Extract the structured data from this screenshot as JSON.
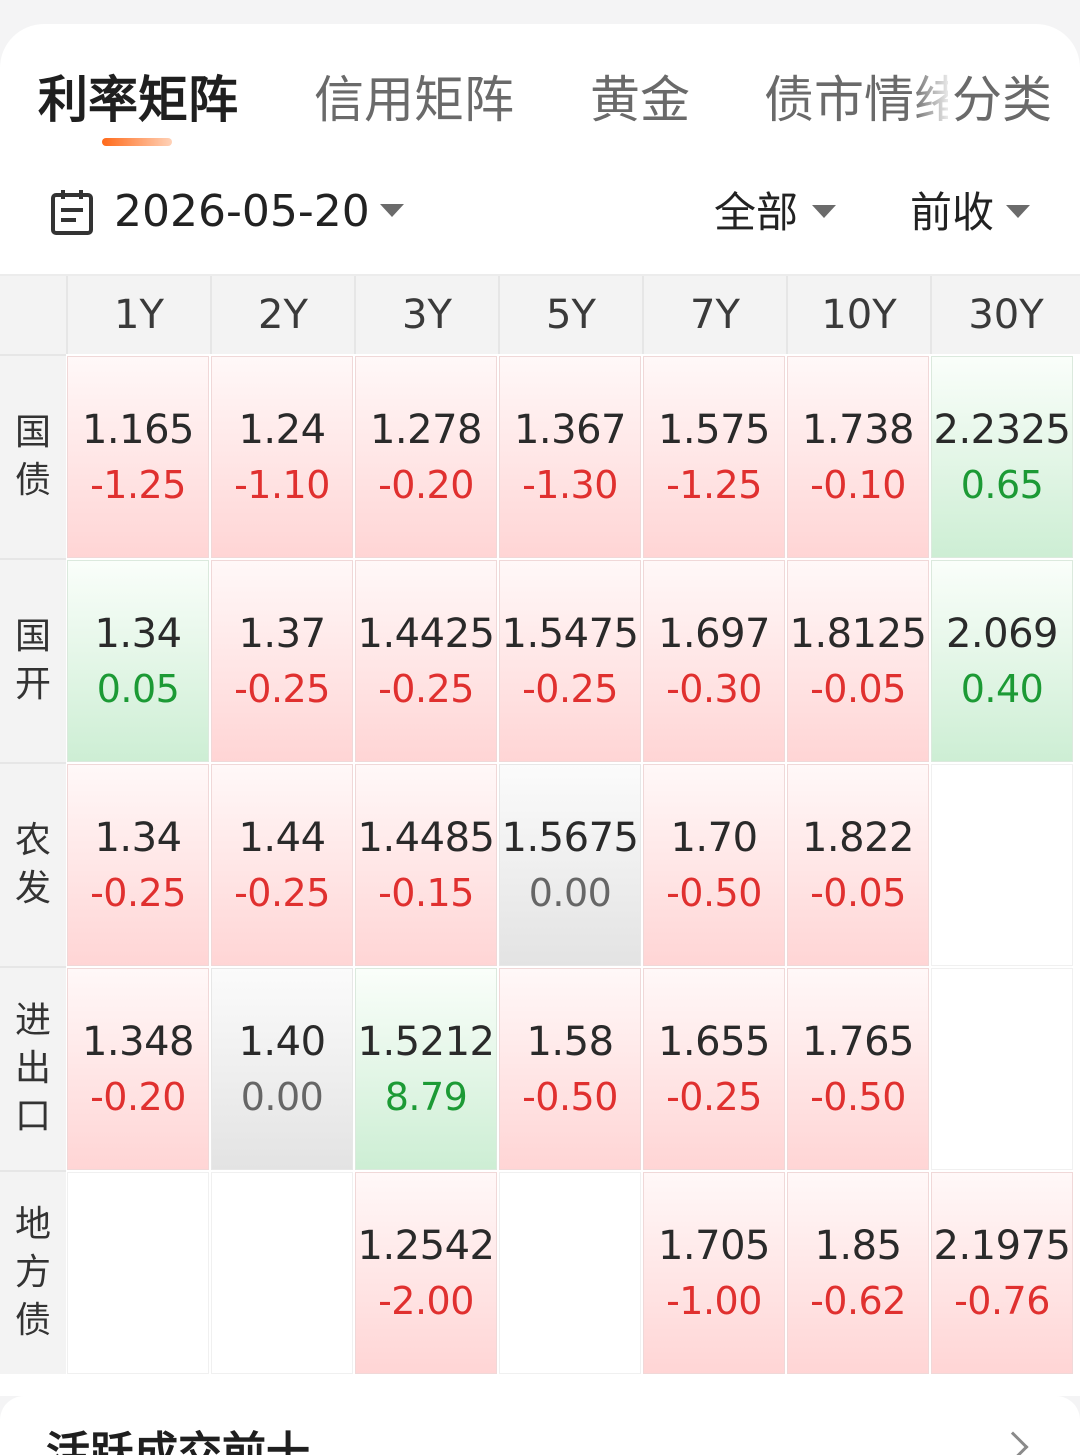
{
  "tabs": [
    {
      "label": "利率矩阵"
    },
    {
      "label": "信用矩阵"
    },
    {
      "label": "黄金"
    },
    {
      "label": "债市情绪"
    },
    {
      "label": "分类"
    }
  ],
  "filters": {
    "date": "2026-05-20",
    "scope": "全部",
    "compare": "前收"
  },
  "matrix": {
    "columns": [
      "1Y",
      "2Y",
      "3Y",
      "5Y",
      "7Y",
      "10Y",
      "30Y"
    ],
    "rows": [
      {
        "label": "国债",
        "cells": [
          {
            "y": "1.165",
            "c": "-1.25",
            "t": "down"
          },
          {
            "y": "1.24",
            "c": "-1.10",
            "t": "down"
          },
          {
            "y": "1.278",
            "c": "-0.20",
            "t": "down"
          },
          {
            "y": "1.367",
            "c": "-1.30",
            "t": "down"
          },
          {
            "y": "1.575",
            "c": "-1.25",
            "t": "down"
          },
          {
            "y": "1.738",
            "c": "-0.10",
            "t": "down"
          },
          {
            "y": "2.2325",
            "c": "0.65",
            "t": "up"
          }
        ]
      },
      {
        "label": "国开",
        "cells": [
          {
            "y": "1.34",
            "c": "0.05",
            "t": "up"
          },
          {
            "y": "1.37",
            "c": "-0.25",
            "t": "down"
          },
          {
            "y": "1.4425",
            "c": "-0.25",
            "t": "down"
          },
          {
            "y": "1.5475",
            "c": "-0.25",
            "t": "down"
          },
          {
            "y": "1.697",
            "c": "-0.30",
            "t": "down"
          },
          {
            "y": "1.8125",
            "c": "-0.05",
            "t": "down"
          },
          {
            "y": "2.069",
            "c": "0.40",
            "t": "up"
          }
        ]
      },
      {
        "label": "农发",
        "cells": [
          {
            "y": "1.34",
            "c": "-0.25",
            "t": "down"
          },
          {
            "y": "1.44",
            "c": "-0.25",
            "t": "down"
          },
          {
            "y": "1.4485",
            "c": "-0.15",
            "t": "down"
          },
          {
            "y": "1.5675",
            "c": "0.00",
            "t": "flat"
          },
          {
            "y": "1.70",
            "c": "-0.50",
            "t": "down"
          },
          {
            "y": "1.822",
            "c": "-0.05",
            "t": "down"
          },
          null
        ]
      },
      {
        "label": "进出口",
        "cells": [
          {
            "y": "1.348",
            "c": "-0.20",
            "t": "down"
          },
          {
            "y": "1.40",
            "c": "0.00",
            "t": "flat"
          },
          {
            "y": "1.5212",
            "c": "8.79",
            "t": "up"
          },
          {
            "y": "1.58",
            "c": "-0.50",
            "t": "down"
          },
          {
            "y": "1.655",
            "c": "-0.25",
            "t": "down"
          },
          {
            "y": "1.765",
            "c": "-0.50",
            "t": "down"
          },
          null
        ]
      },
      {
        "label": "地方债",
        "cells": [
          null,
          null,
          {
            "y": "1.2542",
            "c": "-2.00",
            "t": "down"
          },
          null,
          {
            "y": "1.705",
            "c": "-1.00",
            "t": "down"
          },
          {
            "y": "1.85",
            "c": "-0.62",
            "t": "down"
          },
          {
            "y": "2.1975",
            "c": "-0.76",
            "t": "down"
          }
        ]
      }
    ]
  },
  "section": {
    "title": "活跃成交前十"
  },
  "icons": {
    "calendar": "calendar-icon",
    "dropdown": "caret-down-icon",
    "more": "chevron-right-icon"
  },
  "colors": {
    "accent": "#ff6a1a",
    "down_text": "#e0302f",
    "up_text": "#1c9a35",
    "flat_text": "#666666"
  }
}
